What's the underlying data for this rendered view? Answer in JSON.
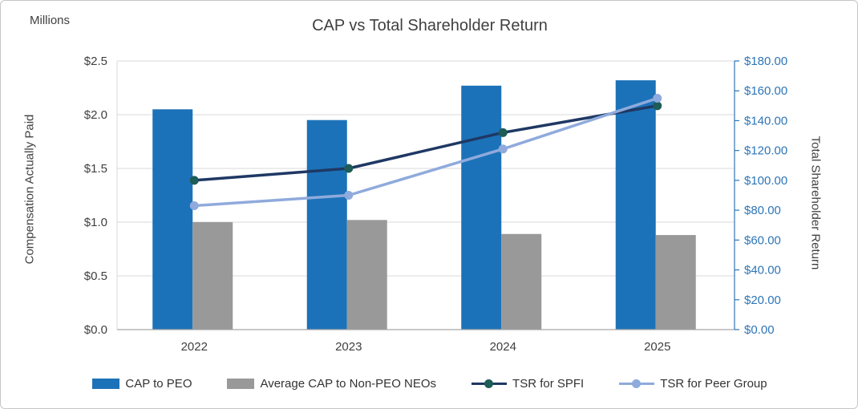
{
  "units_label": "Millions",
  "title": "CAP vs Total Shareholder Return",
  "left_axis_title": "Compensation Actually Paid",
  "right_axis_title": "Total Shareholder Return",
  "chart_data": {
    "type": "bar",
    "subtype": "combo-clustered-bars-with-lines",
    "title": "CAP vs Total Shareholder Return",
    "categories": [
      "2022",
      "2023",
      "2024",
      "2025"
    ],
    "bar_series": [
      {
        "name": "CAP to PEO",
        "axis": "left",
        "color": "#1C72B8",
        "values": [
          2.05,
          1.95,
          2.27,
          2.32
        ]
      },
      {
        "name": "Average CAP to Non-PEO NEOs",
        "axis": "left",
        "color": "#999999",
        "values": [
          1.0,
          1.02,
          0.89,
          0.88
        ]
      }
    ],
    "line_series": [
      {
        "name": "TSR for SPFI",
        "axis": "right",
        "color": "#1F3864",
        "marker_color": "#1D5C57",
        "values": [
          100,
          108,
          132,
          150
        ]
      },
      {
        "name": "TSR for Peer Group",
        "axis": "right",
        "color": "#8FAADC",
        "marker_color": "#8FAADC",
        "values": [
          83,
          90,
          121,
          155
        ]
      }
    ],
    "left_axis": {
      "title": "Compensation Actually Paid",
      "units": "Millions",
      "min": 0,
      "max": 2.5,
      "step": 0.5,
      "tick_labels": [
        "$0.0",
        "$0.5",
        "$1.0",
        "$1.5",
        "$2.0",
        "$2.5"
      ]
    },
    "right_axis": {
      "title": "Total Shareholder Return",
      "min": 0,
      "max": 180,
      "step": 20,
      "tick_labels": [
        "$0.00",
        "$20.00",
        "$40.00",
        "$60.00",
        "$80.00",
        "$100.00",
        "$120.00",
        "$140.00",
        "$160.00",
        "$180.00"
      ]
    },
    "grid": true,
    "legend_position": "bottom"
  },
  "legend": [
    {
      "label": "CAP to PEO",
      "swatch": "bar",
      "color": "#1C72B8"
    },
    {
      "label": "Average CAP to Non-PEO NEOs",
      "swatch": "bar",
      "color": "#999999"
    },
    {
      "label": "TSR for SPFI",
      "swatch": "line-marker",
      "color": "#1F3864",
      "marker_color": "#1D5C57"
    },
    {
      "label": "TSR for Peer Group",
      "swatch": "line-marker",
      "color": "#8FAADC",
      "marker_color": "#8FAADC"
    }
  ],
  "colors": {
    "grid": "#D9D9D9",
    "axis_bottom": "#A6A6A6",
    "axis_left": "#D9D9D9",
    "axis_right": "#2E75B6",
    "tick_text": "#404040",
    "right_tick_text": "#2E75B6",
    "title_text": "#404040"
  }
}
